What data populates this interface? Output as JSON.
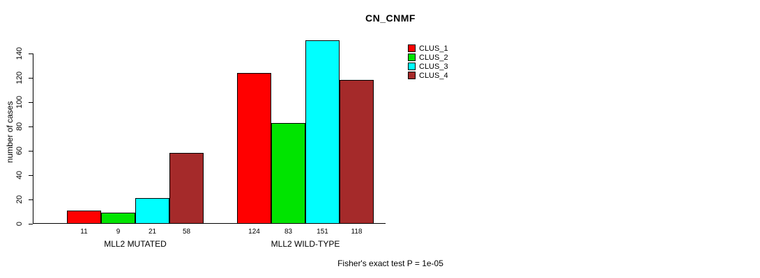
{
  "chart_data": {
    "type": "bar",
    "title": "CN_CNMF",
    "ylabel": "number of cases",
    "xlabel": "",
    "ylim": [
      0,
      150
    ],
    "yticks": [
      0,
      20,
      40,
      60,
      80,
      100,
      120,
      140
    ],
    "grid": false,
    "legend_position": "top-right",
    "series": [
      "CLUS_1",
      "CLUS_2",
      "CLUS_3",
      "CLUS_4"
    ],
    "colors": [
      "#FF0000",
      "#00E400",
      "#00FFFF",
      "#A52A2A"
    ],
    "groups": [
      {
        "label": "MLL2 MUTATED",
        "values": [
          11,
          9,
          21,
          58
        ],
        "value_labels": [
          "11",
          "9",
          "21",
          "58"
        ]
      },
      {
        "label": "MLL2 WILD-TYPE",
        "values": [
          124,
          83,
          151,
          118
        ],
        "value_labels": [
          "124",
          "83",
          "151",
          "118"
        ]
      }
    ],
    "annotation": "Fisher's exact test P = 1e-05"
  }
}
